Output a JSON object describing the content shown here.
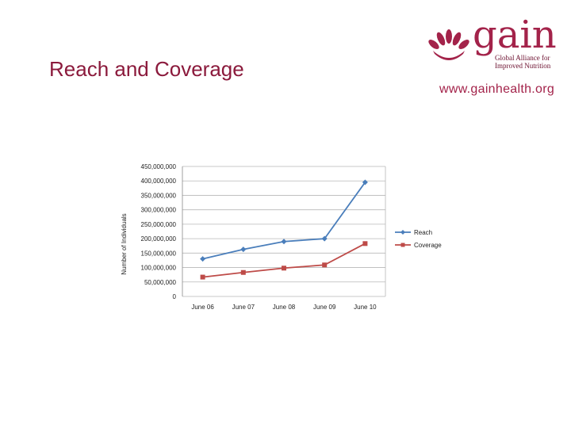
{
  "slide": {
    "title": "Reach and Coverage",
    "website": "www.gainhealth.org"
  },
  "logo": {
    "word": "gain",
    "line1": "Global Alliance for",
    "line2": "Improved Nutrition",
    "color": "#a3234a"
  },
  "chart_data": {
    "type": "line",
    "categories": [
      "June 06",
      "June 07",
      "June 08",
      "June 09",
      "June 10"
    ],
    "ylabel": "Number of Individuals",
    "xlabel": "",
    "ylim": [
      0,
      450000000
    ],
    "yticks": [
      0,
      50000000,
      100000000,
      150000000,
      200000000,
      250000000,
      300000000,
      350000000,
      400000000,
      450000000
    ],
    "ytick_labels": [
      "0",
      "50,000,000",
      "100,000,000",
      "150,000,000",
      "200,000,000",
      "250,000,000",
      "300,000,000",
      "350,000,000",
      "400,000,000",
      "450,000,000"
    ],
    "grid": true,
    "legend_position": "right",
    "series": [
      {
        "name": "Reach",
        "values": [
          130000000,
          163000000,
          190000000,
          200000000,
          395000000
        ],
        "color": "#4a7ebb",
        "marker": "diamond"
      },
      {
        "name": "Coverage",
        "values": [
          67000000,
          83000000,
          98000000,
          109000000,
          183000000
        ],
        "color": "#be4b48",
        "marker": "square"
      }
    ]
  }
}
